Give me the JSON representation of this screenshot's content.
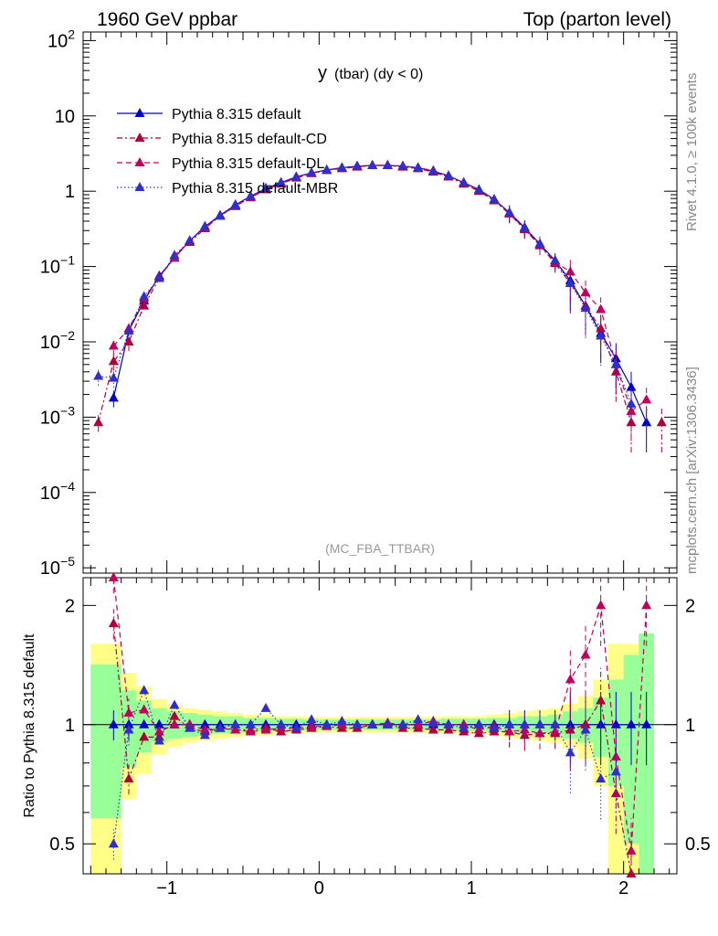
{
  "header": {
    "left": "1960 GeV ppbar",
    "right": "Top (parton level)"
  },
  "side_labels": {
    "rivet": "Rivet 4.1.0, ≥ 100k events",
    "site": "mcplots.cern.ch [arXiv:1306.3436]"
  },
  "colors": {
    "default": "#0000cc",
    "cd": "#b0003a",
    "dl": "#c0005a",
    "mbr": "#3030c8",
    "band_inner": "#99ff99",
    "band_outer": "#ffff88"
  },
  "chart_data": [
    {
      "type": "line",
      "panel": "main",
      "title": "y (tbar) (dy < 0)",
      "title_main": "y",
      "title_sub": "(tbar) (dy < 0)",
      "watermark": "(MC_FBA_TTBAR)",
      "xlabel": "",
      "ylabel": "",
      "yscale": "log",
      "xlim": [
        -1.55,
        2.35
      ],
      "ylim": [
        8.5e-06,
        130
      ],
      "y_tick_labels": [
        {
          "v": 100,
          "base": "10",
          "exp": "2"
        },
        {
          "v": 10,
          "base": "10",
          "exp": ""
        },
        {
          "v": 1,
          "base": "1",
          "exp": ""
        },
        {
          "v": 0.1,
          "base": "10",
          "exp": "−1"
        },
        {
          "v": 0.01,
          "base": "10",
          "exp": "−2"
        },
        {
          "v": 0.001,
          "base": "10",
          "exp": "−3"
        },
        {
          "v": 0.0001,
          "base": "10",
          "exp": "−4"
        },
        {
          "v": 1e-05,
          "base": "10",
          "exp": "−5"
        }
      ],
      "x": [
        -1.45,
        -1.35,
        -1.25,
        -1.15,
        -1.05,
        -0.95,
        -0.85,
        -0.75,
        -0.65,
        -0.55,
        -0.45,
        -0.35,
        -0.25,
        -0.15,
        -0.05,
        0.05,
        0.15,
        0.25,
        0.35,
        0.45,
        0.55,
        0.65,
        0.75,
        0.85,
        0.95,
        1.05,
        1.15,
        1.25,
        1.35,
        1.45,
        1.55,
        1.65,
        1.75,
        1.85,
        1.95,
        2.05,
        2.15,
        2.25
      ],
      "legend": [
        "Pythia 8.315 default",
        "Pythia 8.315 default-CD",
        "Pythia 8.315 default-DL",
        "Pythia 8.315 default-MBR"
      ],
      "series": [
        {
          "name": "Pythia 8.315 default",
          "color": "#0000cc",
          "dash": "",
          "values": [
            null,
            0.0018,
            0.014,
            0.035,
            0.075,
            0.13,
            0.22,
            0.34,
            0.48,
            0.66,
            0.86,
            1.08,
            1.3,
            1.55,
            1.75,
            1.92,
            2.05,
            2.15,
            2.2,
            2.2,
            2.15,
            2.05,
            1.85,
            1.6,
            1.3,
            1.05,
            0.78,
            0.52,
            0.33,
            0.2,
            0.12,
            0.065,
            0.03,
            0.013,
            0.006,
            0.0025,
            0.00085,
            null
          ]
        },
        {
          "name": "Pythia 8.315 default-CD",
          "color": "#b0003a",
          "dash": "6,3,2,3",
          "values": [
            0.00085,
            0.0055,
            0.01,
            0.03,
            0.07,
            0.14,
            0.21,
            0.32,
            0.47,
            0.63,
            0.83,
            1.05,
            1.25,
            1.5,
            1.72,
            1.9,
            2.0,
            2.1,
            2.2,
            2.2,
            2.1,
            2.0,
            1.8,
            1.55,
            1.25,
            1.0,
            0.75,
            0.5,
            0.31,
            0.19,
            0.11,
            0.06,
            0.03,
            0.015,
            0.004,
            0.00085,
            null,
            0.00085
          ]
        },
        {
          "name": "Pythia 8.315 default-DL",
          "color": "#c0005a",
          "dash": "6,4",
          "values": [
            null,
            0.0088,
            0.015,
            0.038,
            0.072,
            0.13,
            0.22,
            0.33,
            0.47,
            0.64,
            0.82,
            1.05,
            1.27,
            1.52,
            1.73,
            1.9,
            2.05,
            2.15,
            2.2,
            2.22,
            2.15,
            2.05,
            1.88,
            1.6,
            1.3,
            1.02,
            0.77,
            0.5,
            0.32,
            0.19,
            0.115,
            0.085,
            0.045,
            0.027,
            0.005,
            0.0012,
            0.0017,
            null
          ]
        },
        {
          "name": "Pythia 8.315 default-MBR",
          "color": "#3030c8",
          "dash": "1.5,2.5",
          "values": [
            0.0035,
            0.0033,
            0.014,
            0.04,
            0.07,
            0.14,
            0.22,
            0.34,
            0.47,
            0.65,
            0.86,
            1.1,
            1.3,
            1.55,
            1.75,
            1.9,
            2.05,
            2.15,
            2.2,
            2.2,
            2.15,
            2.05,
            1.85,
            1.6,
            1.3,
            1.05,
            0.78,
            0.52,
            0.32,
            0.2,
            0.12,
            0.06,
            0.028,
            0.012,
            0.005,
            0.0015,
            null,
            null
          ]
        }
      ]
    },
    {
      "type": "line",
      "panel": "ratio",
      "title": "",
      "xlabel": "",
      "ylabel": "Ratio to Pythia 8.315 default",
      "yscale": "log",
      "xlim": [
        -1.55,
        2.35
      ],
      "ylim": [
        0.42,
        2.35
      ],
      "y_ticks": [
        0.5,
        1,
        2
      ],
      "y_tick_labels": [
        "0.5",
        "1",
        "2"
      ],
      "x_ticks": [
        -1,
        0,
        1,
        2
      ],
      "x_tick_labels": [
        "−1",
        "0",
        "1",
        "2"
      ],
      "reference_line": 1,
      "band_inner_halfwidth": [
        0.42,
        0.42,
        0.22,
        0.15,
        0.1,
        0.08,
        0.07,
        0.06,
        0.05,
        0.05,
        0.04,
        0.04,
        0.035,
        0.035,
        0.03,
        0.03,
        0.03,
        0.03,
        0.03,
        0.03,
        0.03,
        0.03,
        0.03,
        0.035,
        0.035,
        0.035,
        0.04,
        0.04,
        0.05,
        0.05,
        0.06,
        0.08,
        0.1,
        0.17,
        0.3,
        0.5,
        0.7,
        null
      ],
      "band_outer_halfwidth": [
        0.6,
        0.6,
        0.35,
        0.25,
        0.16,
        0.12,
        0.1,
        0.09,
        0.08,
        0.07,
        0.06,
        0.06,
        0.05,
        0.05,
        0.045,
        0.045,
        0.045,
        0.045,
        0.045,
        0.045,
        0.045,
        0.045,
        0.045,
        0.05,
        0.05,
        0.05,
        0.06,
        0.07,
        0.08,
        0.09,
        0.1,
        0.13,
        0.18,
        0.3,
        0.6,
        0.6,
        0.7,
        null
      ],
      "series": [
        {
          "name": "Pythia 8.315 default",
          "color": "#0000cc",
          "dash": "",
          "values": [
            null,
            1,
            1,
            1,
            1,
            1,
            1,
            1,
            1,
            1,
            1,
            1,
            1,
            1,
            1,
            1,
            1,
            1,
            1,
            1,
            1,
            1,
            1,
            1,
            1,
            1,
            1,
            1,
            1,
            1,
            1,
            1,
            1,
            1,
            1,
            1,
            1,
            null
          ]
        },
        {
          "name": "Pythia 8.315 default-CD",
          "color": "#b0003a",
          "dash": "6,3,2,3",
          "values": [
            null,
            1.8,
            0.73,
            0.93,
            0.93,
            1.05,
            0.98,
            0.96,
            0.98,
            0.97,
            0.97,
            0.98,
            0.96,
            0.97,
            0.98,
            0.99,
            0.98,
            0.98,
            1.0,
            1.0,
            0.98,
            0.98,
            0.97,
            0.97,
            0.96,
            0.95,
            0.96,
            0.96,
            0.94,
            0.95,
            0.95,
            0.97,
            1.0,
            1.15,
            0.67,
            0.35,
            null,
            null
          ]
        },
        {
          "name": "Pythia 8.315 default-DL",
          "color": "#c0005a",
          "dash": "6,4",
          "values": [
            null,
            2.65,
            1.07,
            1.09,
            0.96,
            1.0,
            1.0,
            0.97,
            0.98,
            0.97,
            0.96,
            0.97,
            0.98,
            0.98,
            0.99,
            0.99,
            1.0,
            1.0,
            1.0,
            1.01,
            1.0,
            1.0,
            1.02,
            1.0,
            1.0,
            0.97,
            0.99,
            0.96,
            0.97,
            0.95,
            0.96,
            1.3,
            1.5,
            2.0,
            0.83,
            0.48,
            2.0,
            null
          ]
        },
        {
          "name": "Pythia 8.315 default-MBR",
          "color": "#3030c8",
          "dash": "1.5,2.5",
          "values": [
            null,
            0.5,
            0.97,
            1.22,
            0.91,
            1.12,
            0.98,
            0.94,
            0.98,
            1.0,
            1.0,
            1.1,
            1.0,
            0.98,
            1.03,
            1.0,
            1.02,
            1.0,
            1.0,
            1.0,
            1.0,
            1.03,
            1.01,
            1.0,
            0.98,
            1.0,
            0.98,
            1.0,
            1.0,
            1.0,
            1.0,
            0.85,
            0.97,
            0.73,
            0.76,
            null,
            null,
            null
          ]
        }
      ]
    }
  ]
}
